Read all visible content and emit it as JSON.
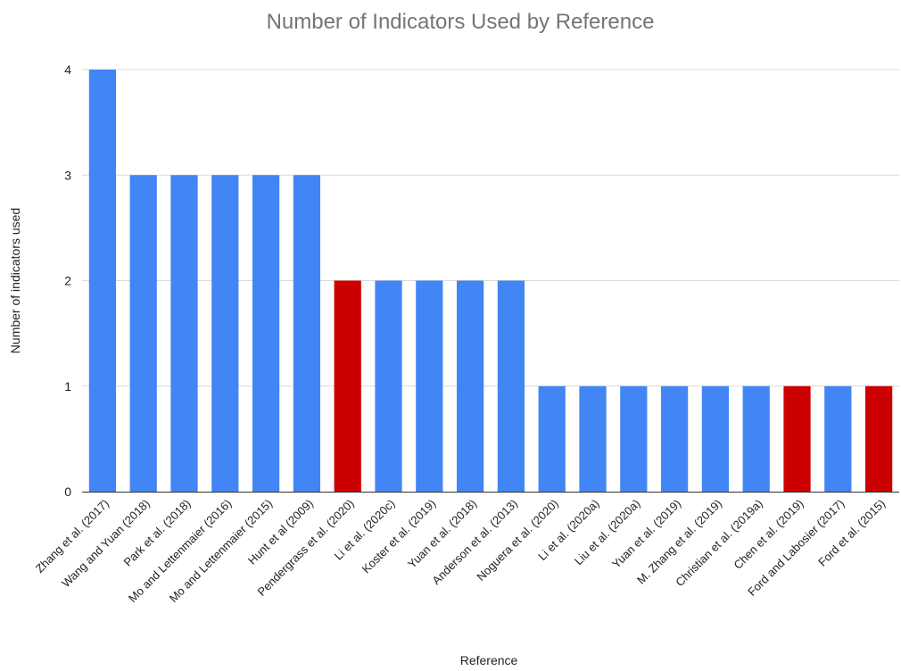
{
  "chart_data": {
    "type": "bar",
    "title": "Number of Indicators Used by Reference",
    "xlabel": "Reference",
    "ylabel": "Number of indicators used",
    "ylim": [
      0,
      4
    ],
    "yticks": [
      "0",
      "1",
      "2",
      "3",
      "4"
    ],
    "grid": true,
    "legend": "none",
    "categories": [
      "Zhang et al. (2017)",
      "Wang and Yuan (2018)",
      "Park et al. (2018)",
      "Mo and Lettenmaier (2016)",
      "Mo and Lettenmaier (2015)",
      "Hunt et al (2009)",
      "Pendergrass et al. (2020)",
      "Li et al. (2020c)",
      "Koster et al. (2019)",
      "Yuan et al. (2018)",
      "Anderson et al. (2013)",
      "Noguera et al. (2020)",
      "Li et al. (2020a)",
      "Liu et al. (2020a)",
      "Yuan et al. (2019)",
      "M. Zhang et al. (2019)",
      "Christian et al. (2019a)",
      "Chen et al. (2019)",
      "Ford and Labosier (2017)",
      "Ford et al. (2015)"
    ],
    "values": [
      4,
      3,
      3,
      3,
      3,
      3,
      2,
      2,
      2,
      2,
      2,
      1,
      1,
      1,
      1,
      1,
      1,
      1,
      1,
      1
    ],
    "bar_colors": [
      "#4285f4",
      "#4285f4",
      "#4285f4",
      "#4285f4",
      "#4285f4",
      "#4285f4",
      "#cc0000",
      "#4285f4",
      "#4285f4",
      "#4285f4",
      "#4285f4",
      "#4285f4",
      "#4285f4",
      "#4285f4",
      "#4285f4",
      "#4285f4",
      "#4285f4",
      "#cc0000",
      "#4285f4",
      "#cc0000"
    ],
    "colors": {
      "default_bar": "#4285f4",
      "highlight_bar": "#cc0000",
      "title": "#757575",
      "gridline": "#d9d9d9",
      "axis_text": "#222222"
    }
  }
}
